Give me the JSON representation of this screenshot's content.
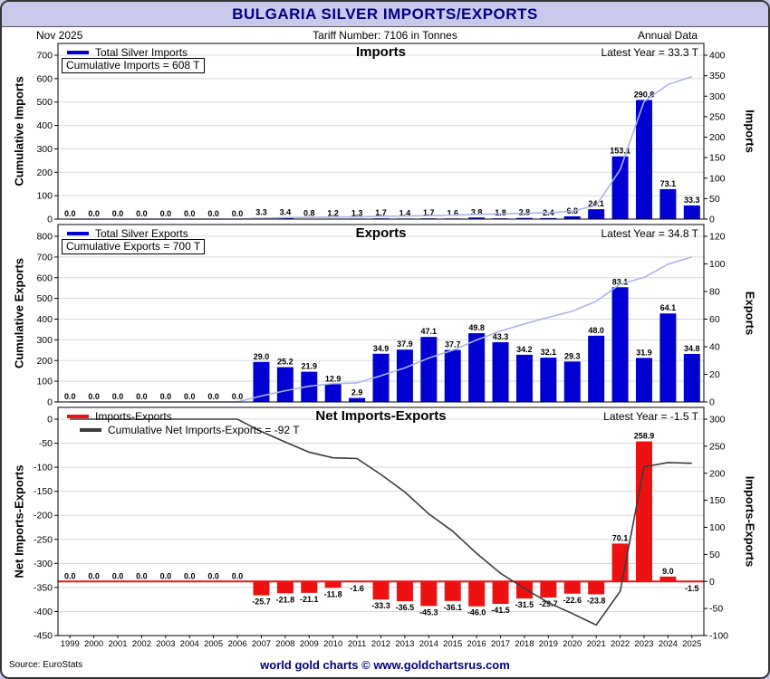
{
  "header": {
    "title": "BULGARIA SILVER IMPORTS/EXPORTS",
    "date": "Nov 2025",
    "tariff": "Tariff Number: 7106 in Tonnes",
    "frequency": "Annual Data"
  },
  "footer": {
    "source": "Source: EuroStats",
    "credit": "world gold charts © www.goldchartsrus.com"
  },
  "colors": {
    "navy": "#000080",
    "header_bg": "#c9c9ee",
    "grid": "#d8d8d8",
    "bar_blue": "#0000d2",
    "bar_red": "#ee1111",
    "cumulative_blue": "#aab4e8",
    "cumulative_dark": "#3c3c3c"
  },
  "years": [
    "1999",
    "2000",
    "2001",
    "2002",
    "2003",
    "2004",
    "2005",
    "2006",
    "2007",
    "2008",
    "2009",
    "2010",
    "2011",
    "2012",
    "2013",
    "2014",
    "2015",
    "2016",
    "2017",
    "2018",
    "2019",
    "2020",
    "2021",
    "2022",
    "2023",
    "2024",
    "2025"
  ],
  "chart_data": [
    {
      "type": "bar",
      "title": "Imports",
      "legend_series": "Total Silver Imports",
      "cumulative_note": "Cumulative Imports = 608 T",
      "latest": "Latest Year = 33.3 T",
      "bar_color": "#0000d2",
      "line_color": "#aab4e8",
      "left_axis": {
        "label": "Cumulative Imports",
        "min": 0,
        "max": 700,
        "step": 100
      },
      "right_axis": {
        "label": "Imports",
        "min": 0,
        "max": 400,
        "step": 50
      },
      "values": [
        0,
        0,
        0,
        0,
        0,
        0,
        0,
        0,
        3.3,
        3.4,
        0.8,
        1.2,
        1.3,
        1.7,
        1.4,
        1.7,
        1.6,
        3.8,
        1.8,
        2.8,
        2.4,
        6.8,
        24.1,
        153.1,
        290.8,
        73.1,
        33.3
      ],
      "cumulative": [
        0,
        0,
        0,
        0,
        0,
        0,
        0,
        0,
        3.3,
        6.7,
        7.5,
        8.7,
        10.0,
        11.7,
        13.1,
        14.8,
        16.4,
        20.2,
        22.0,
        24.8,
        27.2,
        34.0,
        58.1,
        211.2,
        502.0,
        575.1,
        608.4
      ]
    },
    {
      "type": "bar",
      "title": "Exports",
      "legend_series": "Total Silver Exports",
      "cumulative_note": "Cumulative Exports = 700 T",
      "latest": "Latest Year = 34.8 T",
      "bar_color": "#0000d2",
      "line_color": "#aab4e8",
      "left_axis": {
        "label": "Cumulative Exports",
        "min": 0,
        "max": 800,
        "step": 100
      },
      "right_axis": {
        "label": "Exports",
        "min": 0,
        "max": 120,
        "step": 20
      },
      "values": [
        0,
        0,
        0,
        0,
        0,
        0,
        0,
        0,
        29.0,
        25.2,
        21.9,
        12.9,
        2.9,
        34.9,
        37.9,
        47.1,
        37.7,
        49.8,
        43.3,
        34.2,
        32.1,
        29.3,
        48.0,
        83.1,
        31.9,
        64.1,
        34.8
      ],
      "cumulative": [
        0,
        0,
        0,
        0,
        0,
        0,
        0,
        0,
        29.0,
        54.2,
        76.1,
        89.0,
        91.9,
        126.8,
        164.7,
        211.8,
        249.5,
        299.3,
        342.6,
        376.8,
        408.9,
        438.2,
        486.2,
        569.3,
        601.2,
        665.3,
        700.1
      ]
    },
    {
      "type": "bar",
      "title": "Net Imports-Exports",
      "legend_series": "Imports-Exports",
      "cumulative_note": "Cumulative Net Imports-Exports = -92 T",
      "latest": "Latest Year = -1.5 T",
      "bar_color": "#ee1111",
      "line_color": "#3c3c3c",
      "left_axis": {
        "label": "Net Imports-Exports",
        "min": -450,
        "max": 0,
        "step": 50
      },
      "right_axis": {
        "label": "Imports-Exports",
        "min": -100,
        "max": 300,
        "step": 50
      },
      "values": [
        0,
        0,
        0,
        0,
        0,
        0,
        0,
        0,
        -25.7,
        -21.8,
        -21.1,
        -11.8,
        -1.6,
        -33.3,
        -36.5,
        -45.3,
        -36.1,
        -46.0,
        -41.5,
        -31.5,
        -29.7,
        -22.6,
        -23.8,
        70.1,
        258.9,
        9.0,
        -1.5
      ],
      "cumulative": [
        0,
        0,
        0,
        0,
        0,
        0,
        0,
        0,
        -25.7,
        -47.5,
        -68.6,
        -80.3,
        -81.9,
        -115.1,
        -151.6,
        -197.0,
        -233.1,
        -279.1,
        -320.6,
        -352.0,
        -381.7,
        -404.2,
        -428.1,
        -358.1,
        -99.2,
        -90.2,
        -91.7
      ]
    }
  ]
}
